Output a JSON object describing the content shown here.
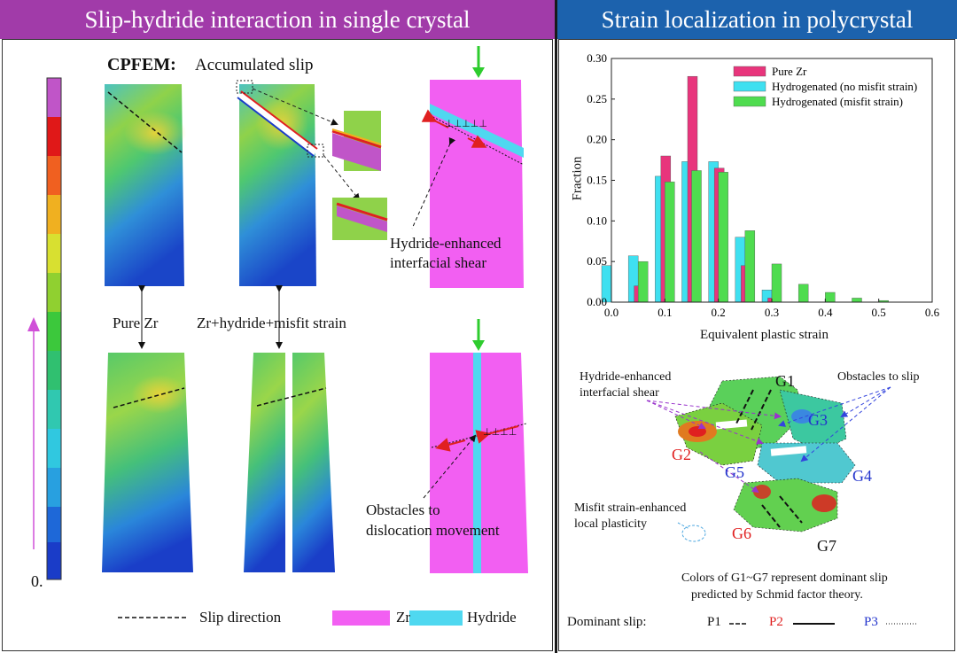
{
  "headers": {
    "left": "Slip-hydride interaction in single crystal",
    "right": "Strain localization in polycrystal"
  },
  "left_panel": {
    "cpfem_label": "CPFEM:",
    "cpfem_sub": "Accumulated slip",
    "colorbar_min": "0.",
    "label_pure_zr": "Pure Zr",
    "label_zr_hydride": "Zr+hydride+misfit strain",
    "annot_interfacial_1": "Hydride-enhanced",
    "annot_interfacial_2": "interfacial shear",
    "annot_obstacles_1": "Obstacles to",
    "annot_obstacles_2": "dislocation movement",
    "legend_slip": "Slip direction",
    "legend_zr": "Zr",
    "legend_hydride": "Hydride",
    "colors": {
      "zr": "#f25ff2",
      "hydride": "#4fd8f0",
      "arrow_green": "#2ecc2e",
      "arrow_red": "#e02020"
    }
  },
  "chart_data": {
    "type": "bar",
    "x": [
      0.0,
      0.05,
      0.1,
      0.15,
      0.2,
      0.25,
      0.3,
      0.35,
      0.4,
      0.45,
      0.5
    ],
    "series": [
      {
        "name": "Pure Zr",
        "color": "#e8357c",
        "values": [
          0.0,
          0.02,
          0.18,
          0.278,
          0.165,
          0.045,
          0.005,
          0.0,
          0.0,
          0.0,
          0.0
        ]
      },
      {
        "name": "Hydrogenated (no misfit strain)",
        "color": "#3fe0f0",
        "values": [
          0.045,
          0.057,
          0.155,
          0.173,
          0.173,
          0.08,
          0.015,
          0.0,
          0.0,
          0.0,
          0.0
        ]
      },
      {
        "name": "Hydrogenated (misfit strain)",
        "color": "#4fdc4f",
        "values": [
          0.0,
          0.05,
          0.148,
          0.162,
          0.16,
          0.088,
          0.047,
          0.022,
          0.012,
          0.005,
          0.002
        ]
      }
    ],
    "xlabel": "Equivalent plastic strain",
    "ylabel": "Fraction",
    "xlim": [
      0.0,
      0.6
    ],
    "ylim": [
      0.0,
      0.3
    ],
    "xticks": [
      "0.0",
      "0.1",
      "0.2",
      "0.3",
      "0.4",
      "0.5",
      "0.6"
    ],
    "yticks": [
      "0.00",
      "0.05",
      "0.10",
      "0.15",
      "0.20",
      "0.25",
      "0.30"
    ],
    "legend_position": "top-right"
  },
  "right_panel": {
    "annot_interfacial_1": "Hydride-enhanced",
    "annot_interfacial_2": "interfacial shear",
    "annot_obstacles": "Obstacles to slip",
    "annot_misfit_1": "Misfit strain-enhanced",
    "annot_misfit_2": "local plasticity",
    "grains": {
      "g1": "G1",
      "g2": "G2",
      "g3": "G3",
      "g4": "G4",
      "g5": "G5",
      "g6": "G6",
      "g7": "G7"
    },
    "caption_1": "Colors of G1~G7 represent dominant slip",
    "caption_2": "predicted by Schmid factor theory.",
    "dominant_label": "Dominant slip:",
    "p1": "P1",
    "p2": "P2",
    "p3": "P3",
    "colors": {
      "p1": "#111111",
      "p2": "#e02020",
      "p3": "#2233cc",
      "purple_arrow": "#9933cc",
      "blue_arrow": "#3344dd"
    }
  }
}
